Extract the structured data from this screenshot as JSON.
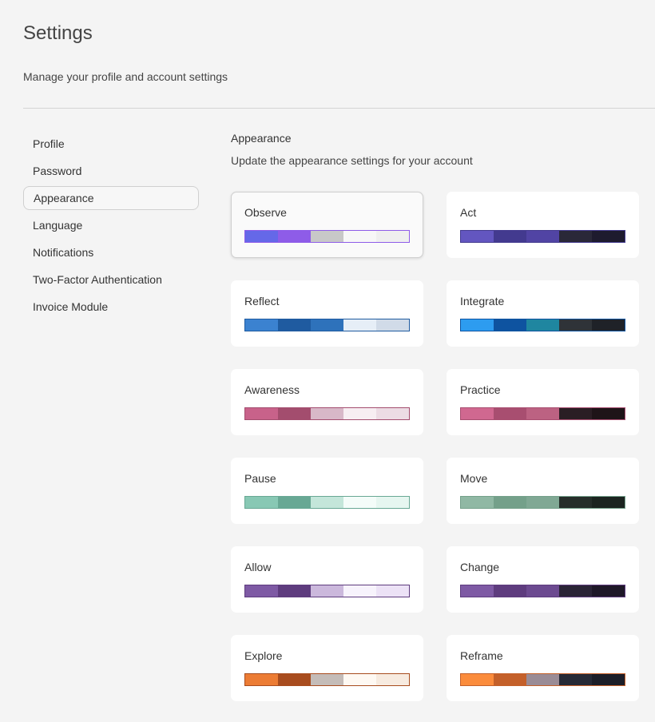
{
  "header": {
    "title": "Settings",
    "subtitle": "Manage your profile and account settings"
  },
  "nav": {
    "items": [
      "Profile",
      "Password",
      "Appearance",
      "Language",
      "Notifications",
      "Two-Factor Authentication",
      "Invoice Module"
    ],
    "selected": 2
  },
  "section": {
    "title": "Appearance",
    "description": "Update the appearance settings for your account"
  },
  "themes": {
    "selected": 0,
    "items": [
      {
        "name": "Observe",
        "colors": [
          "#6568e8",
          "#8e5ce8",
          "#c8c8c8",
          "#f7f7f7",
          "#efefef"
        ]
      },
      {
        "name": "Act",
        "colors": [
          "#6356c0",
          "#433a8f",
          "#5144a4",
          "#2a2838",
          "#1e1b2e"
        ]
      },
      {
        "name": "Reflect",
        "colors": [
          "#3b82d0",
          "#1f5ba0",
          "#2e72bb",
          "#e6eef7",
          "#d1dbe8"
        ]
      },
      {
        "name": "Integrate",
        "colors": [
          "#2d9cf0",
          "#0e53a0",
          "#1f86a0",
          "#2f3338",
          "#1f2228"
        ]
      },
      {
        "name": "Awareness",
        "colors": [
          "#c8628a",
          "#a34d6e",
          "#d8b8c8",
          "#f7eef2",
          "#ecdce4"
        ]
      },
      {
        "name": "Practice",
        "colors": [
          "#d06890",
          "#a84e70",
          "#bc6282",
          "#2a1e24",
          "#1e1418"
        ]
      },
      {
        "name": "Pause",
        "colors": [
          "#88c8b4",
          "#68a894",
          "#c4e6da",
          "#f4fcf9",
          "#e6f6f0"
        ]
      },
      {
        "name": "Move",
        "colors": [
          "#90b8a4",
          "#74a08a",
          "#80a894",
          "#262e2a",
          "#1c2420"
        ]
      },
      {
        "name": "Allow",
        "colors": [
          "#7e5aa4",
          "#5e3c7e",
          "#cbb8dc",
          "#f7f3fc",
          "#ece2f6"
        ]
      },
      {
        "name": "Change",
        "colors": [
          "#7e5aa4",
          "#5e3c7e",
          "#6c4a90",
          "#2a2436",
          "#1e1828"
        ]
      },
      {
        "name": "Explore",
        "colors": [
          "#ec7c34",
          "#a84c1e",
          "#c4bcb8",
          "#fef9f3",
          "#f7ebe0"
        ]
      },
      {
        "name": "Reframe",
        "colors": [
          "#fb8c3c",
          "#c4602a",
          "#9a8c96",
          "#262a36",
          "#1c1e28"
        ]
      }
    ]
  }
}
